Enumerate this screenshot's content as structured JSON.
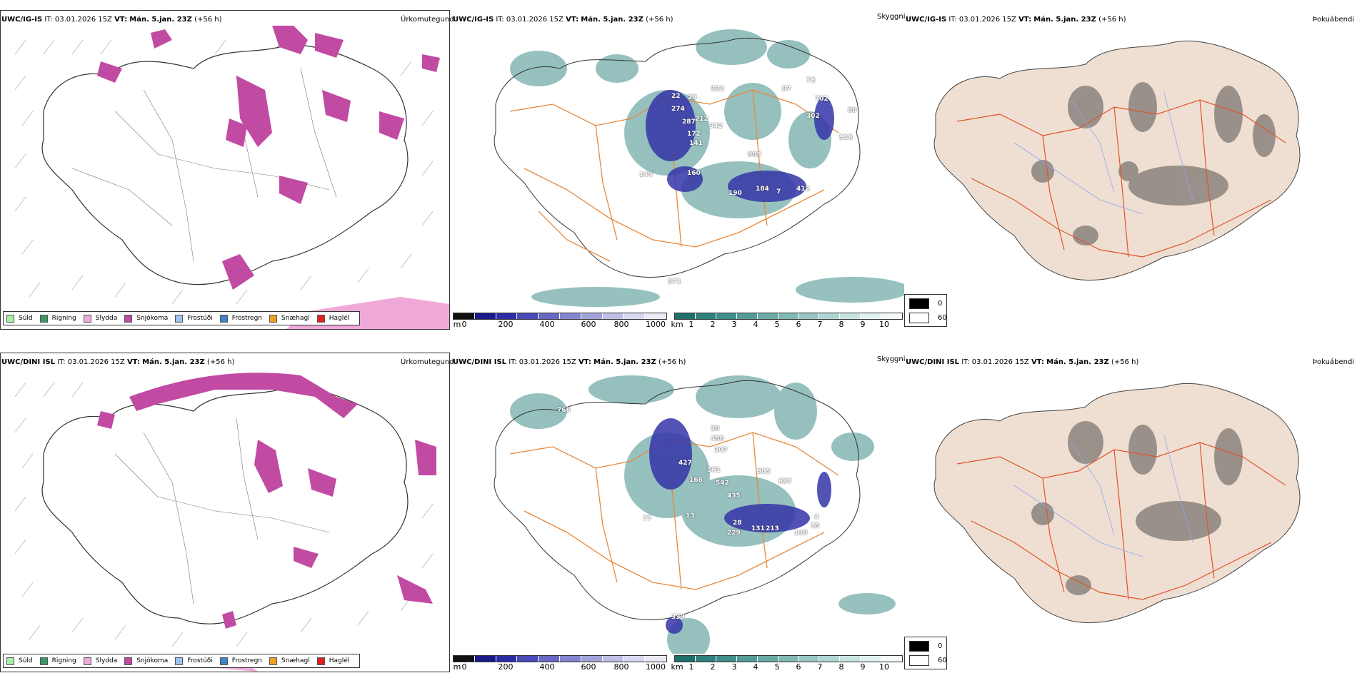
{
  "rows": [
    {
      "header": {
        "model": "UWC/IG-IS",
        "it": "IT: 03.01.2026 15Z",
        "vt_label": "VT:",
        "vt_value": "Mán. 5.jan. 23Z",
        "lead": "(+56 h)"
      },
      "precip_title": "Úrkomutegund",
      "vis_title": "Skyggni",
      "fog_title": "Þokuábendi",
      "vis_numbers": [
        "22",
        "29",
        "322",
        "274",
        "287",
        "212",
        "342",
        "172",
        "141",
        "87",
        "76",
        "702",
        "302",
        "80",
        "518",
        "909",
        "144",
        "160",
        "190",
        "184",
        "7",
        "412",
        "371"
      ]
    },
    {
      "header": {
        "model": "UWC/DINI ISL",
        "it": "IT: 03.01.2026 15Z",
        "vt_label": "VT:",
        "vt_value": "Mán. 5.jan. 23Z",
        "lead": "(+56 h)"
      },
      "precip_title": "Úrkomutegund",
      "vis_title": "Skyggni",
      "fog_title": "Þokuábendi",
      "vis_numbers": [
        "768",
        "29",
        "456",
        "307",
        "427",
        "561",
        "168",
        "542",
        "305",
        "637",
        "435",
        "13",
        "77",
        "28",
        "131",
        "213",
        "4",
        "15",
        "229",
        "119",
        "339"
      ]
    }
  ],
  "precip_legend": [
    {
      "label": "Súld",
      "color": "#a6f0a6"
    },
    {
      "label": "Rigning",
      "color": "#3b9a64"
    },
    {
      "label": "Slydda",
      "color": "#f0a8d8"
    },
    {
      "label": "Snjókoma",
      "color": "#c14aa3"
    },
    {
      "label": "Frostúði",
      "color": "#9cc4ee"
    },
    {
      "label": "Frostregn",
      "color": "#3f84c7"
    },
    {
      "label": "Snæhagl",
      "color": "#f0a020"
    },
    {
      "label": "Haglél",
      "color": "#e02020"
    }
  ],
  "ceiling_bar": {
    "unit": "m",
    "ticks": [
      "0",
      "200",
      "400",
      "600",
      "800",
      "1000"
    ],
    "colors": [
      "#111111",
      "#1a1a8a",
      "#2c2ca6",
      "#4a4ab8",
      "#6767c4",
      "#8585cf",
      "#a2a2da",
      "#bfbfe6",
      "#d8d8f0",
      "#eaeaf6"
    ]
  },
  "vis_bar": {
    "unit": "km",
    "ticks": [
      "1",
      "2",
      "3",
      "4",
      "5",
      "6",
      "7",
      "8",
      "9",
      "10"
    ],
    "colors": [
      "#1f6f6a",
      "#2e817c",
      "#3f8e89",
      "#539b96",
      "#69aaa5",
      "#80b8b4",
      "#98c7c3",
      "#b0d6d3",
      "#c8e4e2",
      "#e0f1ef",
      "#f3faf9"
    ]
  },
  "fog_legend": [
    {
      "label": "0",
      "color": "#000000"
    },
    {
      "label": "60",
      "color": "#ffffff"
    }
  ]
}
